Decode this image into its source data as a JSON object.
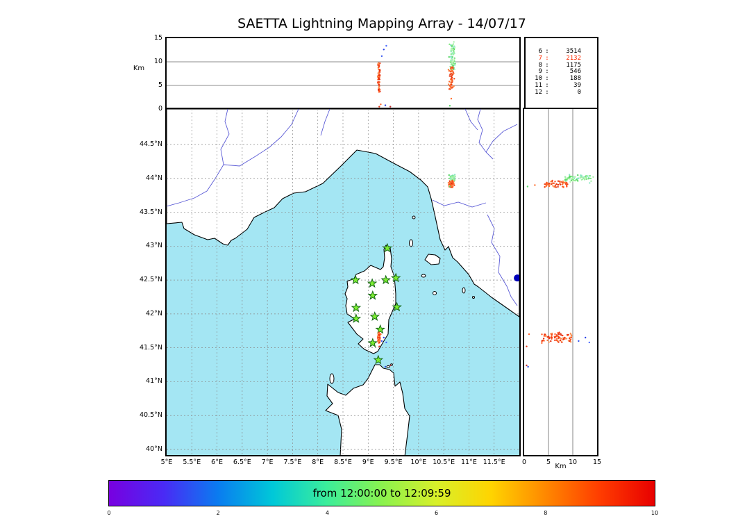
{
  "title": "SAETTA Lightning Mapping Array - 14/07/17",
  "colors": {
    "sea": "#a4e6f3",
    "land": "#ffffff",
    "coastline": "#000000",
    "river": "#5b5bd6",
    "grid": "#8a8a8a",
    "panel_grid": "#666666",
    "station_fill": "#7dee33",
    "station_stroke": "#156615",
    "stats_highlight": "#ff2a00"
  },
  "alt_lon_panel": {
    "ylabel": "Km",
    "yticks": [
      {
        "label": "15",
        "value": 15
      },
      {
        "label": "10",
        "value": 10
      },
      {
        "label": "5",
        "value": 5
      },
      {
        "label": "0",
        "value": 0
      }
    ]
  },
  "map_panel": {
    "lat_ticks": [
      {
        "label": "44.5°N",
        "value": 44.5
      },
      {
        "label": "44°N",
        "value": 44
      },
      {
        "label": "43.5°N",
        "value": 43.5
      },
      {
        "label": "43°N",
        "value": 43
      },
      {
        "label": "42.5°N",
        "value": 42.5
      },
      {
        "label": "42°N",
        "value": 42
      },
      {
        "label": "41.5°N",
        "value": 41.5
      },
      {
        "label": "41°N",
        "value": 41
      },
      {
        "label": "40.5°N",
        "value": 40.5
      },
      {
        "label": "40°N",
        "value": 40
      }
    ],
    "lon_ticks": [
      {
        "label": "5°E",
        "value": 5
      },
      {
        "label": "5.5°E",
        "value": 5.5
      },
      {
        "label": "6°E",
        "value": 6
      },
      {
        "label": "6.5°E",
        "value": 6.5
      },
      {
        "label": "7°E",
        "value": 7
      },
      {
        "label": "7.5°E",
        "value": 7.5
      },
      {
        "label": "8°E",
        "value": 8
      },
      {
        "label": "8.5°E",
        "value": 8.5
      },
      {
        "label": "9°E",
        "value": 9
      },
      {
        "label": "9.5°E",
        "value": 9.5
      },
      {
        "label": "10°E",
        "value": 10
      },
      {
        "label": "10.5°E",
        "value": 10.5
      },
      {
        "label": "11°E",
        "value": 11
      },
      {
        "label": "11.5°E",
        "value": 11.5
      }
    ]
  },
  "alt_lat_panel": {
    "xlabel": "Km",
    "xticks": [
      {
        "label": "0",
        "value": 0
      },
      {
        "label": "5",
        "value": 5
      },
      {
        "label": "10",
        "value": 10
      },
      {
        "label": "15",
        "value": 15
      }
    ]
  },
  "stats_panel": {
    "separator": ":",
    "rows": [
      {
        "label": "6",
        "value": "3514",
        "highlight": false
      },
      {
        "label": "7",
        "value": "2132",
        "highlight": true
      },
      {
        "label": "8",
        "value": "1175",
        "highlight": false
      },
      {
        "label": "9",
        "value": "546",
        "highlight": false
      },
      {
        "label": "10",
        "value": "188",
        "highlight": false
      },
      {
        "label": "11",
        "value": "39",
        "highlight": false
      },
      {
        "label": "12",
        "value": "0",
        "highlight": false
      }
    ]
  },
  "colorbar": {
    "label": "from 12:00:00 to 12:09:59",
    "ticks": [
      {
        "label": "0",
        "value": 0
      },
      {
        "label": "2",
        "value": 2
      },
      {
        "label": "4",
        "value": 4
      },
      {
        "label": "6",
        "value": 6
      },
      {
        "label": "8",
        "value": 8
      },
      {
        "label": "10",
        "value": 10
      }
    ],
    "gradient": [
      "#7800e0",
      "#4a2af5",
      "#0a7cf0",
      "#00c8d8",
      "#3cee9a",
      "#8af24e",
      "#d8f02a",
      "#ffd400",
      "#ff8800",
      "#ff3c00",
      "#e80000"
    ]
  },
  "chart_data": {
    "type": "scatter",
    "title": "SAETTA Lightning Mapping Array - 14/07/17",
    "time_window": {
      "start": "12:00:00",
      "end": "12:09:59",
      "colorbar_minutes": [
        0,
        10
      ]
    },
    "axes": {
      "map_lon_deg_e": [
        5,
        12
      ],
      "map_lat_deg_n": [
        39.9,
        45.0
      ],
      "altitude_km": [
        0,
        15
      ],
      "panel_gridlines_km": [
        5,
        10
      ]
    },
    "sources_per_station_count": [
      {
        "stations": 6,
        "sources": 3514
      },
      {
        "stations": 7,
        "sources": 2132
      },
      {
        "stations": 8,
        "sources": 1175
      },
      {
        "stations": 9,
        "sources": 546
      },
      {
        "stations": 10,
        "sources": 188
      },
      {
        "stations": 11,
        "sources": 39
      },
      {
        "stations": 12,
        "sources": 0
      }
    ],
    "lma_stations_lonlat": [
      [
        9.38,
        42.97
      ],
      [
        9.55,
        42.53
      ],
      [
        9.35,
        42.5
      ],
      [
        9.08,
        42.45
      ],
      [
        8.75,
        42.5
      ],
      [
        9.09,
        42.27
      ],
      [
        9.57,
        42.1
      ],
      [
        8.76,
        42.09
      ],
      [
        9.13,
        41.96
      ],
      [
        8.76,
        41.93
      ],
      [
        9.24,
        41.77
      ],
      [
        9.09,
        41.57
      ],
      [
        9.2,
        41.32
      ]
    ],
    "storms": [
      {
        "name": "storm-tuscany-coast",
        "seed": 7,
        "clusters": [
          {
            "n": 75,
            "lon": [
              10.6,
              10.74
            ],
            "lat": [
              43.93,
              44.07
            ],
            "alt": [
              8.0,
              13.8
            ],
            "colors": [
              "#7fe87f",
              "#a2f0a6",
              "#5cd868",
              "#bdf4b6",
              "#8ce8c4"
            ]
          },
          {
            "n": 60,
            "lon": [
              10.59,
              10.72
            ],
            "lat": [
              43.85,
              43.97
            ],
            "alt": [
              4.2,
              9.0
            ],
            "colors": [
              "#ff6a2e",
              "#f04a1c",
              "#ff8844",
              "#e63812",
              "#ff5522"
            ]
          }
        ],
        "outliers": [
          {
            "lon": 10.65,
            "lat": 43.9,
            "alt": 2.2,
            "color": "#ff7030"
          },
          {
            "lon": 10.62,
            "lat": 43.88,
            "alt": 0.7,
            "color": "#5cd868"
          },
          {
            "lon": 10.7,
            "lat": 44.02,
            "alt": 14.2,
            "color": "#a2f0a6"
          }
        ]
      },
      {
        "name": "storm-corsica-east",
        "seed": 13,
        "clusters": [
          {
            "n": 85,
            "lon": [
              9.19,
              9.24
            ],
            "lat": [
              41.56,
              41.74
            ],
            "alt": [
              3.4,
              9.8
            ],
            "colors": [
              "#ff5c26",
              "#f23a14",
              "#ff7c3a",
              "#e22e0e",
              "#ff9152"
            ]
          }
        ],
        "outliers": [
          {
            "lon": 9.27,
            "lat": 41.6,
            "alt": 11.2,
            "color": "#3050f0"
          },
          {
            "lon": 9.31,
            "lat": 41.65,
            "alt": 12.6,
            "color": "#2840e8"
          },
          {
            "lon": 9.36,
            "lat": 41.58,
            "alt": 13.4,
            "color": "#4868ff"
          },
          {
            "lon": 9.25,
            "lat": 41.7,
            "alt": 1.0,
            "color": "#ff6830"
          },
          {
            "lon": 9.22,
            "lat": 41.52,
            "alt": 0.5,
            "color": "#e03818"
          },
          {
            "lon": 9.34,
            "lat": 41.22,
            "alt": 0.8,
            "color": "#3048e0"
          },
          {
            "lon": 9.44,
            "lat": 41.24,
            "alt": 0.5,
            "color": "#c03030"
          }
        ]
      }
    ],
    "isolated_source": {
      "lon": 11.96,
      "lat": 42.53,
      "color": "#0000bb",
      "radius_px": 5
    }
  }
}
